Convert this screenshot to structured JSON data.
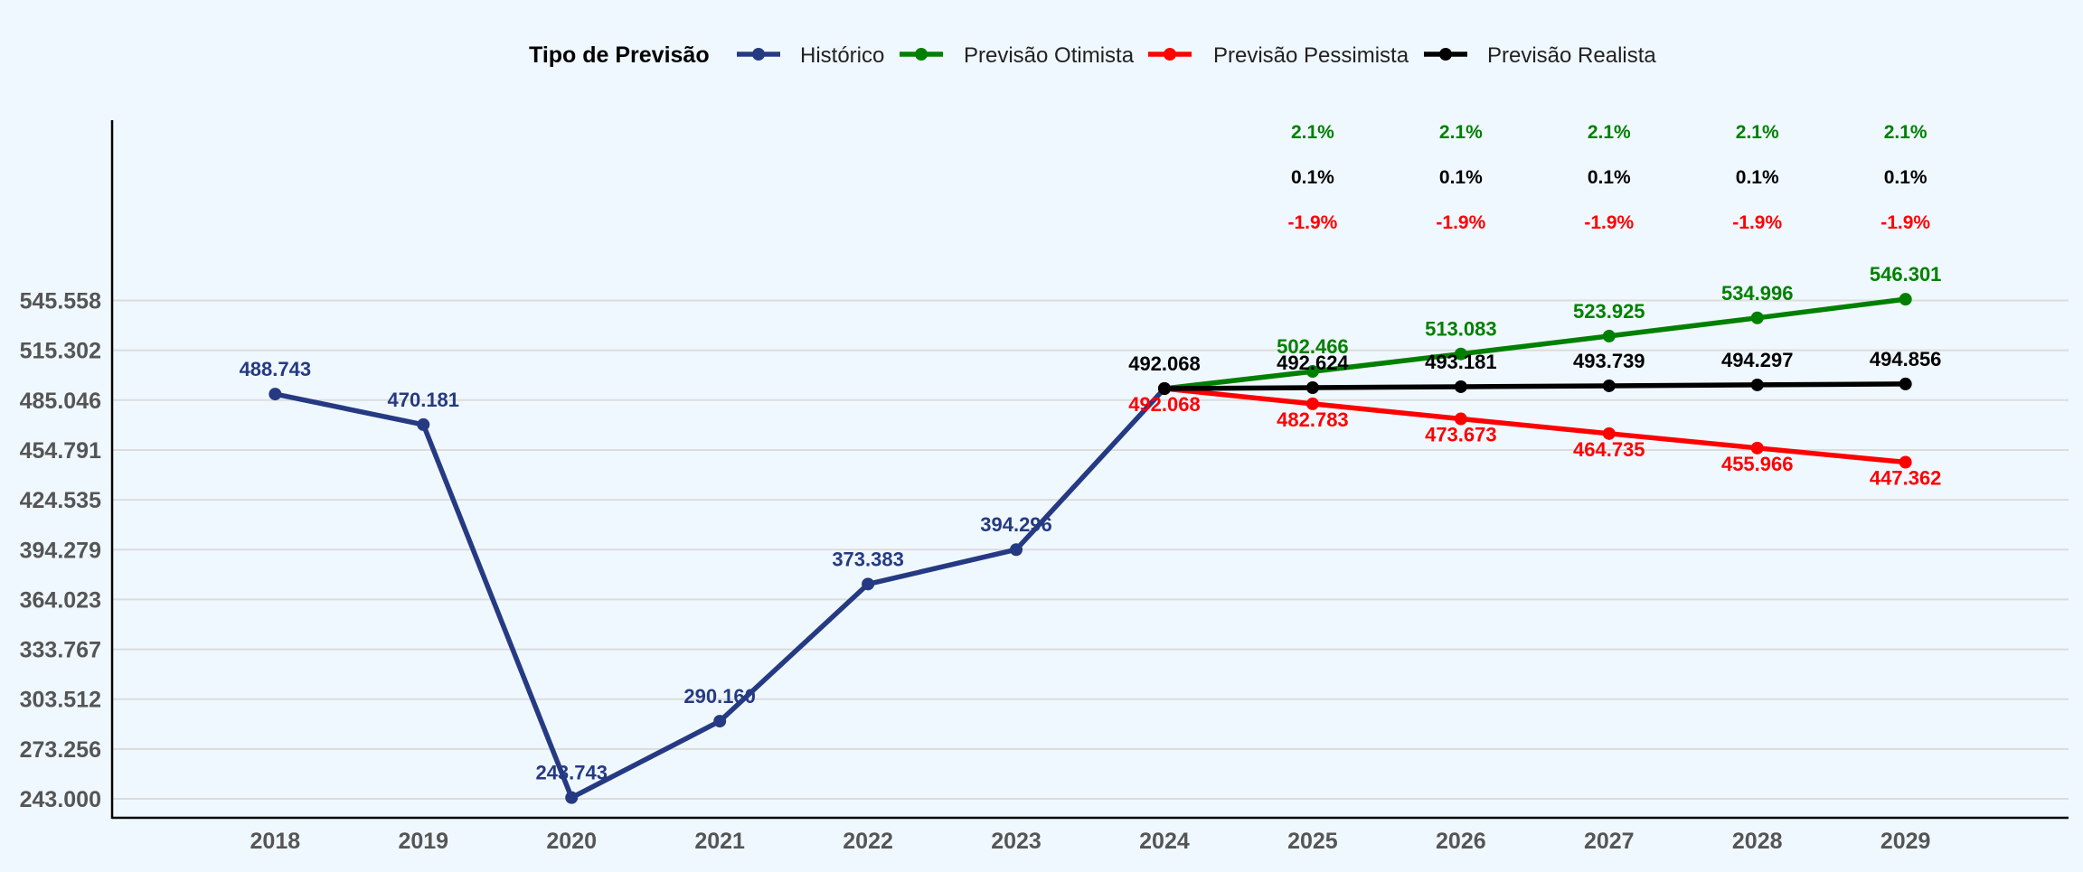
{
  "chart_data": {
    "type": "line",
    "title": "",
    "xlabel": "",
    "ylabel": "",
    "legend": {
      "title": "Tipo de Previsão",
      "placement": "top-center"
    },
    "x": [
      2018,
      2019,
      2020,
      2021,
      2022,
      2023,
      2024,
      2025,
      2026,
      2027,
      2028,
      2029
    ],
    "x_tick_labels": [
      "2018",
      "2019",
      "2020",
      "2021",
      "2022",
      "2023",
      "2024",
      "2025",
      "2026",
      "2027",
      "2028",
      "2029"
    ],
    "xlim": [
      2016.9,
      2030.1
    ],
    "y_ticks": [
      243000,
      273256,
      303512,
      333767,
      364023,
      394279,
      424535,
      454791,
      485046,
      515302,
      545558
    ],
    "y_tick_labels": [
      "243.000",
      "273.256",
      "303.512",
      "333.767",
      "364.023",
      "394.279",
      "424.535",
      "454.791",
      "485.046",
      "515.302",
      "545.558"
    ],
    "ylim": [
      231500,
      655000
    ],
    "grid": "horizontal",
    "series": [
      {
        "name": "Histórico",
        "color": "#253a82",
        "x": [
          2018,
          2019,
          2020,
          2021,
          2022,
          2023,
          2024
        ],
        "values": [
          488743,
          470181,
          243743,
          290160,
          373383,
          394296,
          492068
        ],
        "labels": [
          "488.743",
          "470.181",
          "243.743",
          "290.160",
          "373.383",
          "394.296",
          ""
        ],
        "label_position": "above"
      },
      {
        "name": "Previsão Otimista",
        "color": "#008000",
        "x": [
          2024,
          2025,
          2026,
          2027,
          2028,
          2029
        ],
        "values": [
          492068,
          502466,
          513083,
          523925,
          534996,
          546301
        ],
        "labels": [
          "",
          "502.466",
          "513.083",
          "523.925",
          "534.996",
          "546.301"
        ],
        "label_position": "above"
      },
      {
        "name": "Previsão Pessimista",
        "color": "#ff0000",
        "x": [
          2024,
          2025,
          2026,
          2027,
          2028,
          2029
        ],
        "values": [
          492068,
          482783,
          473673,
          464735,
          455966,
          447362
        ],
        "labels": [
          "492.068",
          "482.783",
          "473.673",
          "464.735",
          "455.966",
          "447.362"
        ],
        "label_position": "below"
      },
      {
        "name": "Previsão Realista",
        "color": "#000000",
        "x": [
          2024,
          2025,
          2026,
          2027,
          2028,
          2029
        ],
        "values": [
          492068,
          492624,
          493181,
          493739,
          494297,
          494856
        ],
        "labels": [
          "492.068",
          "492.624",
          "493.181",
          "493.739",
          "494.297",
          "494.856"
        ],
        "label_position": "above"
      }
    ],
    "growth_annotations": {
      "x": [
        2025,
        2026,
        2027,
        2028,
        2029
      ],
      "rows": [
        {
          "series": "Previsão Otimista",
          "color": "#008000",
          "values": [
            "2.1%",
            "2.1%",
            "2.1%",
            "2.1%",
            "2.1%"
          ]
        },
        {
          "series": "Previsão Realista",
          "color": "#000000",
          "values": [
            "0.1%",
            "0.1%",
            "0.1%",
            "0.1%",
            "0.1%"
          ]
        },
        {
          "series": "Previsão Pessimista",
          "color": "#ff0000",
          "values": [
            "-1.9%",
            "-1.9%",
            "-1.9%",
            "-1.9%",
            "-1.9%"
          ]
        }
      ]
    }
  }
}
